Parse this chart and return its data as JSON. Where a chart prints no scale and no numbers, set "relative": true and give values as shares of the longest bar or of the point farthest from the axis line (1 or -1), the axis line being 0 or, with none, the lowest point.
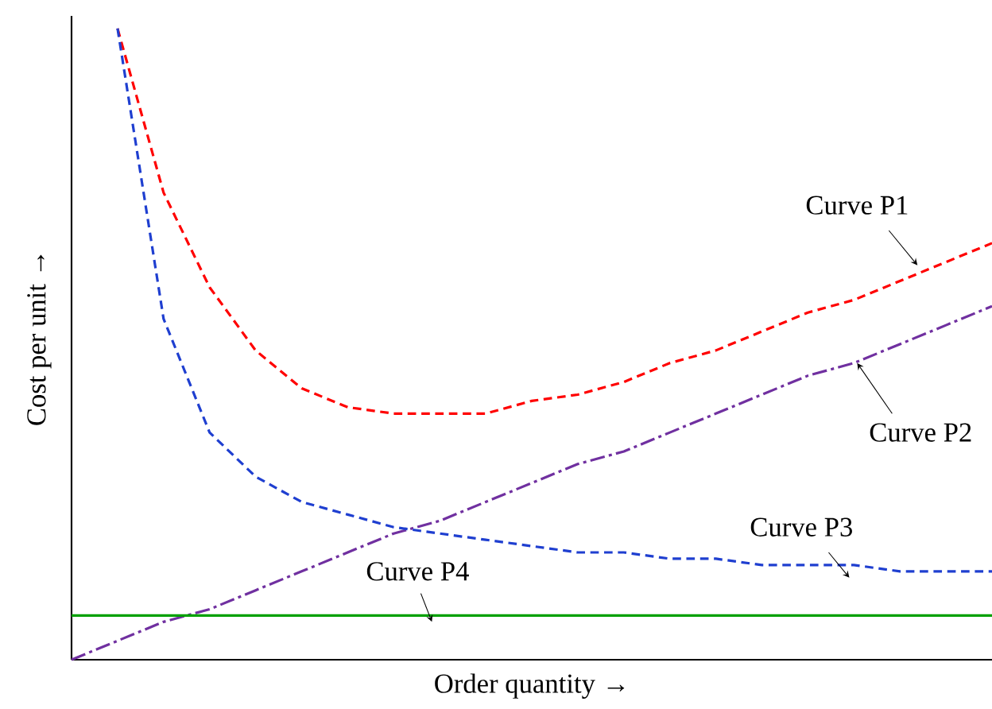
{
  "chart_data": {
    "type": "line",
    "relative": true,
    "xlabel": "Order quantity →",
    "ylabel": "Cost per unit →",
    "categories": [
      null,
      null,
      null,
      null,
      null,
      null,
      null,
      null,
      null,
      null,
      null,
      null,
      null,
      null,
      null,
      null,
      null,
      null,
      null,
      null,
      null
    ],
    "series": [
      {
        "name": "Curve P1",
        "color": "#ff0000",
        "line_style": "dashed",
        "values": [
          null,
          1.0,
          0.74,
          0.59,
          0.49,
          0.43,
          0.4,
          0.39,
          0.39,
          0.39,
          0.41,
          0.42,
          0.44,
          0.47,
          0.49,
          0.52,
          0.55,
          0.57,
          0.6,
          0.63,
          0.66
        ]
      },
      {
        "name": "Curve P2",
        "color": "#7030a0",
        "line_style": "dashdot",
        "values": [
          0,
          0.03,
          0.06,
          0.08,
          0.11,
          0.14,
          0.17,
          0.2,
          0.22,
          0.25,
          0.28,
          0.31,
          0.33,
          0.36,
          0.39,
          0.42,
          0.45,
          0.47,
          0.5,
          0.53,
          0.56
        ]
      },
      {
        "name": "Curve P3",
        "color": "#1f3fd0",
        "line_style": "dashed",
        "values": [
          null,
          1.0,
          0.54,
          0.36,
          0.29,
          0.25,
          0.23,
          0.21,
          0.2,
          0.19,
          0.18,
          0.17,
          0.17,
          0.16,
          0.16,
          0.15,
          0.15,
          0.15,
          0.14,
          0.14,
          0.14
        ]
      },
      {
        "name": "Curve P4",
        "color": "#00a000",
        "line_style": "solid",
        "values": [
          0.07,
          0.07,
          0.07,
          0.07,
          0.07,
          0.07,
          0.07,
          0.07,
          0.07,
          0.07,
          0.07,
          0.07,
          0.07,
          0.07,
          0.07,
          0.07,
          0.07,
          0.07,
          0.07,
          0.07,
          0.07
        ]
      }
    ]
  }
}
